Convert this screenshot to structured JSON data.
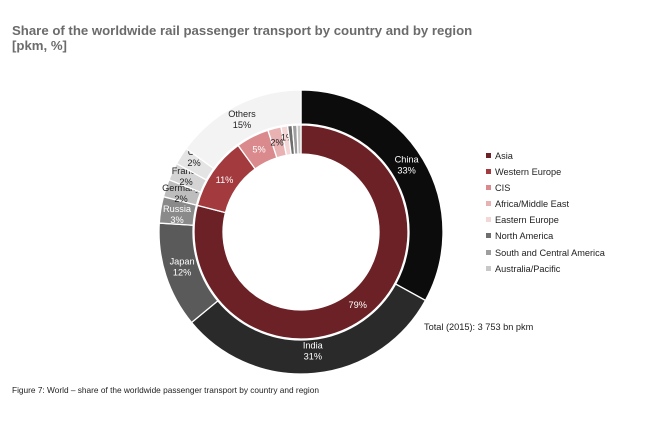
{
  "title_line1": "Share of the worldwide rail passenger transport by country and by region",
  "title_line2": "[pkm, %]",
  "total_text": "Total (2015): 3 753 bn pkm",
  "caption": "Figure 7: World – share of the worldwide passenger transport by country and region",
  "chart_data": {
    "type": "pie",
    "variant": "double-donut",
    "legend_placement": "right",
    "inner": {
      "name": "regions",
      "slices": [
        {
          "label": "Asia",
          "value": 79,
          "text": "79%",
          "color": "#6b2125"
        },
        {
          "label": "Western Europe",
          "value": 11,
          "text": "11%",
          "color": "#a33a3e"
        },
        {
          "label": "CIS",
          "value": 5,
          "text": "5%",
          "color": "#da8a8c"
        },
        {
          "label": "Africa/Middle East",
          "value": 2,
          "text": "2%",
          "color": "#e8b2b3"
        },
        {
          "label": "Eastern Europe",
          "value": 1,
          "text": "1%",
          "color": "#f3d6d6"
        },
        {
          "label": "North America",
          "value": 0.7,
          "text": "",
          "color": "#6e6e6e"
        },
        {
          "label": "South and Central America",
          "value": 0.7,
          "text": "",
          "color": "#9e9e9e"
        },
        {
          "label": "Australia/Pacific",
          "value": 0.6,
          "text": "",
          "color": "#c8c8c8"
        }
      ]
    },
    "outer": {
      "name": "countries",
      "slices": [
        {
          "label": "China",
          "value": 33,
          "text": "33%",
          "color": "#0c0c0c"
        },
        {
          "label": "India",
          "value": 31,
          "text": "31%",
          "color": "#2a2a2a"
        },
        {
          "label": "Japan",
          "value": 12,
          "text": "12%",
          "color": "#5a5a5a"
        },
        {
          "label": "Russia",
          "value": 3,
          "text": "3%",
          "color": "#8a8a8a"
        },
        {
          "label": "Germany",
          "value": 2,
          "text": "2%",
          "color": "#bdbdbd"
        },
        {
          "label": "France",
          "value": 2,
          "text": "2%",
          "color": "#d4d4d4"
        },
        {
          "label": "UK",
          "value": 2,
          "text": "2%",
          "color": "#e4e4e4"
        },
        {
          "label": "Others",
          "value": 15,
          "text": "15%",
          "color": "#f3f3f3"
        }
      ]
    },
    "legend": [
      {
        "label": "Asia",
        "color": "#6b2125"
      },
      {
        "label": "Western Europe",
        "color": "#a33a3e"
      },
      {
        "label": "CIS",
        "color": "#da8a8c"
      },
      {
        "label": "Africa/Middle East",
        "color": "#e8b2b3"
      },
      {
        "label": "Eastern Europe",
        "color": "#f3d6d6"
      },
      {
        "label": "North America",
        "color": "#6e6e6e"
      },
      {
        "label": "South and Central America",
        "color": "#9e9e9e"
      },
      {
        "label": "Australia/Pacific",
        "color": "#c8c8c8"
      }
    ]
  }
}
